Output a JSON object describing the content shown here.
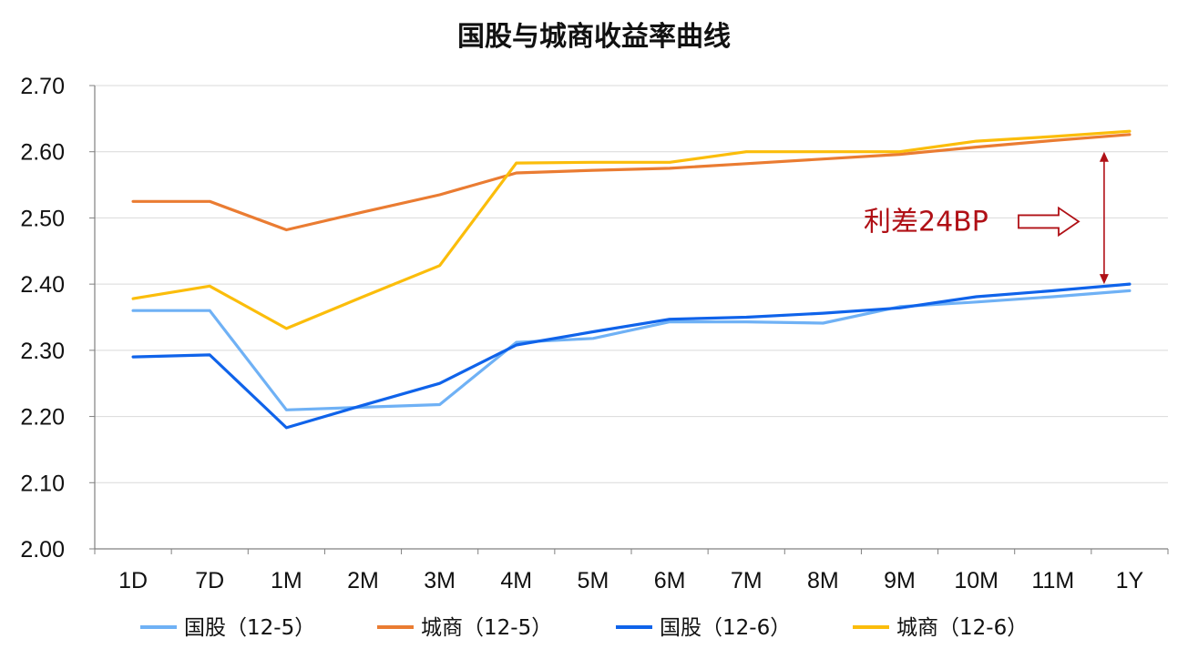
{
  "chart_data": {
    "type": "line",
    "title": "国股与城商收益率曲线",
    "xlabel": "",
    "ylabel": "",
    "ylim": [
      2.0,
      2.7
    ],
    "ytick_step": 0.1,
    "yticks": [
      "2.00",
      "2.10",
      "2.20",
      "2.30",
      "2.40",
      "2.50",
      "2.60",
      "2.70"
    ],
    "categories": [
      "1D",
      "7D",
      "1M",
      "2M",
      "3M",
      "4M",
      "5M",
      "6M",
      "7M",
      "8M",
      "9M",
      "10M",
      "11M",
      "1Y"
    ],
    "grid": true,
    "legend_position": "bottom",
    "series": [
      {
        "name": "国股（12-5）",
        "color": "#6fb1f5",
        "values": [
          2.36,
          2.36,
          2.21,
          2.214,
          2.218,
          2.312,
          2.318,
          2.343,
          2.343,
          2.341,
          2.366,
          2.373,
          2.381,
          2.39
        ]
      },
      {
        "name": "城商（12-5）",
        "color": "#ea7c32",
        "values": [
          2.525,
          2.525,
          2.482,
          2.509,
          2.535,
          2.568,
          2.572,
          2.575,
          2.582,
          2.589,
          2.596,
          2.607,
          2.617,
          2.626
        ]
      },
      {
        "name": "国股（12-6）",
        "color": "#0f63ea",
        "values": [
          2.29,
          2.293,
          2.183,
          2.217,
          2.25,
          2.308,
          2.328,
          2.347,
          2.35,
          2.356,
          2.364,
          2.381,
          2.39,
          2.4
        ]
      },
      {
        "name": "城商（12-6）",
        "color": "#fbbd0b",
        "values": [
          2.378,
          2.397,
          2.333,
          2.381,
          2.428,
          2.583,
          2.584,
          2.584,
          2.6,
          2.6,
          2.6,
          2.616,
          2.623,
          2.631
        ]
      }
    ],
    "annotations": [
      {
        "text": "利差24BP",
        "color": "#b01016",
        "arrow": "right",
        "span_from": 2.4,
        "span_to": 2.6,
        "at_category": "1Y"
      }
    ]
  }
}
